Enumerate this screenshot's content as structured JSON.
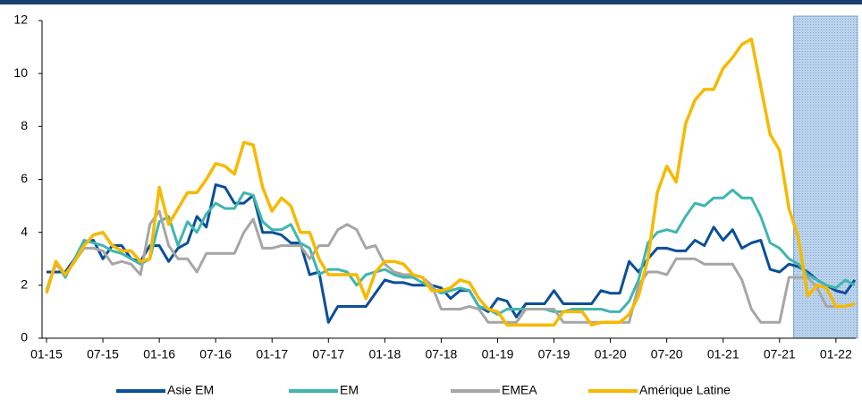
{
  "chart_data": {
    "type": "line",
    "categories": [
      "01-15",
      null,
      null,
      null,
      null,
      null,
      "07-15",
      null,
      null,
      null,
      null,
      null,
      "01-16",
      null,
      null,
      null,
      null,
      null,
      "07-16",
      null,
      null,
      null,
      null,
      null,
      "01-17",
      null,
      null,
      null,
      null,
      null,
      "07-17",
      null,
      null,
      null,
      null,
      null,
      "01-18",
      null,
      null,
      null,
      null,
      null,
      "07-18",
      null,
      null,
      null,
      null,
      null,
      "01-19",
      null,
      null,
      null,
      null,
      null,
      "07-19",
      null,
      null,
      null,
      null,
      null,
      "01-20",
      null,
      null,
      null,
      null,
      null,
      "07-20",
      null,
      null,
      null,
      null,
      null,
      "01-21",
      null,
      null,
      null,
      null,
      null,
      "07-21",
      null,
      null,
      null,
      null,
      null,
      "01-22",
      null,
      null
    ],
    "ylim": [
      0,
      12
    ],
    "yticks": [
      0,
      2,
      4,
      6,
      8,
      10,
      12
    ],
    "shaded_range": [
      79.5,
      86.3
    ],
    "series": [
      {
        "name": "Asie EM",
        "color": "#0b4f97",
        "values": [
          2.5,
          2.5,
          2.5,
          3.0,
          3.6,
          3.7,
          3.0,
          3.5,
          3.5,
          3.0,
          2.9,
          3.5,
          3.5,
          2.9,
          3.4,
          3.6,
          4.6,
          4.2,
          5.8,
          5.7,
          5.1,
          5.1,
          5.4,
          4.0,
          4.0,
          3.9,
          3.6,
          3.6,
          2.4,
          2.5,
          0.6,
          1.2,
          1.2,
          1.2,
          1.2,
          1.7,
          2.2,
          2.1,
          2.1,
          2.0,
          2.0,
          2.0,
          1.9,
          1.5,
          1.8,
          1.8,
          1.2,
          1.0,
          1.5,
          1.4,
          0.8,
          1.3,
          1.3,
          1.3,
          1.8,
          1.3,
          1.3,
          1.3,
          1.3,
          1.8,
          1.7,
          1.7,
          2.9,
          2.5,
          3.0,
          3.4,
          3.4,
          3.3,
          3.3,
          3.7,
          3.5,
          4.2,
          3.7,
          4.1,
          3.4,
          3.6,
          3.7,
          2.6,
          2.5,
          2.8,
          2.7,
          2.5,
          2.2,
          2.0,
          1.8,
          1.7,
          2.2
        ]
      },
      {
        "name": "EM",
        "color": "#3fb6b0",
        "values": [
          1.8,
          2.9,
          2.3,
          3.0,
          3.7,
          3.6,
          3.5,
          3.3,
          3.2,
          3.0,
          2.8,
          3.0,
          4.4,
          4.6,
          3.5,
          4.4,
          4.0,
          4.7,
          5.1,
          4.9,
          4.9,
          5.5,
          5.4,
          4.4,
          4.1,
          4.1,
          4.3,
          3.6,
          3.4,
          2.4,
          2.6,
          2.6,
          2.5,
          2.0,
          2.4,
          2.5,
          2.6,
          2.4,
          2.3,
          2.3,
          2.1,
          1.9,
          1.7,
          1.8,
          1.9,
          1.8,
          1.2,
          1.1,
          0.9,
          1.1,
          1.1,
          1.1,
          1.1,
          1.1,
          1.0,
          1.0,
          1.1,
          1.1,
          1.1,
          1.1,
          1.0,
          1.0,
          1.4,
          2.2,
          3.6,
          4.0,
          4.1,
          4.0,
          4.6,
          5.1,
          5.0,
          5.3,
          5.3,
          5.6,
          5.3,
          5.3,
          4.6,
          3.6,
          3.4,
          3.0,
          2.8,
          2.4,
          2.2,
          2.0,
          1.9,
          2.2,
          2.0
        ]
      },
      {
        "name": "EMEA",
        "color": "#a6a6a6",
        "values": [
          1.8,
          2.8,
          2.4,
          2.9,
          3.4,
          3.4,
          3.3,
          2.8,
          2.9,
          2.8,
          2.4,
          4.3,
          4.8,
          3.5,
          3.0,
          3.0,
          2.5,
          3.2,
          3.2,
          3.2,
          3.2,
          4.0,
          4.5,
          3.4,
          3.4,
          3.5,
          3.5,
          3.5,
          3.0,
          3.5,
          3.5,
          4.1,
          4.3,
          4.1,
          3.4,
          3.5,
          2.8,
          2.5,
          2.4,
          2.4,
          2.3,
          2.0,
          1.1,
          1.1,
          1.1,
          1.2,
          1.1,
          0.6,
          0.6,
          0.6,
          0.6,
          1.1,
          1.1,
          1.1,
          1.1,
          0.6,
          0.6,
          0.6,
          0.6,
          0.6,
          0.6,
          0.6,
          0.6,
          2.0,
          2.5,
          2.5,
          2.4,
          3.0,
          3.0,
          3.0,
          2.8,
          2.8,
          2.8,
          2.8,
          2.2,
          1.1,
          0.6,
          0.6,
          0.6,
          2.3,
          2.3,
          2.3,
          1.9,
          1.2,
          1.2,
          1.2,
          1.3
        ]
      },
      {
        "name": "Amérique Latine",
        "color": "#f7b900",
        "values": [
          1.7,
          2.9,
          2.4,
          2.9,
          3.5,
          3.9,
          4.0,
          3.5,
          3.3,
          3.3,
          2.9,
          3.0,
          5.7,
          4.3,
          4.9,
          5.5,
          5.5,
          6.0,
          6.6,
          6.5,
          6.2,
          7.4,
          7.3,
          5.7,
          4.8,
          5.3,
          5.0,
          4.0,
          4.0,
          3.0,
          2.4,
          2.4,
          2.4,
          2.4,
          1.5,
          2.5,
          2.9,
          2.9,
          2.8,
          2.4,
          2.3,
          1.8,
          1.8,
          1.9,
          2.2,
          2.1,
          1.5,
          1.1,
          1.0,
          0.5,
          0.5,
          0.5,
          0.5,
          0.5,
          0.5,
          1.0,
          1.0,
          1.0,
          0.5,
          0.6,
          0.6,
          0.6,
          0.9,
          1.6,
          3.0,
          5.5,
          6.5,
          5.9,
          8.1,
          9.0,
          9.4,
          9.4,
          10.2,
          10.6,
          11.1,
          11.3,
          9.5,
          7.7,
          7.1,
          4.9,
          3.8,
          1.6,
          2.0,
          1.9,
          1.2,
          1.2,
          1.3
        ]
      }
    ]
  }
}
